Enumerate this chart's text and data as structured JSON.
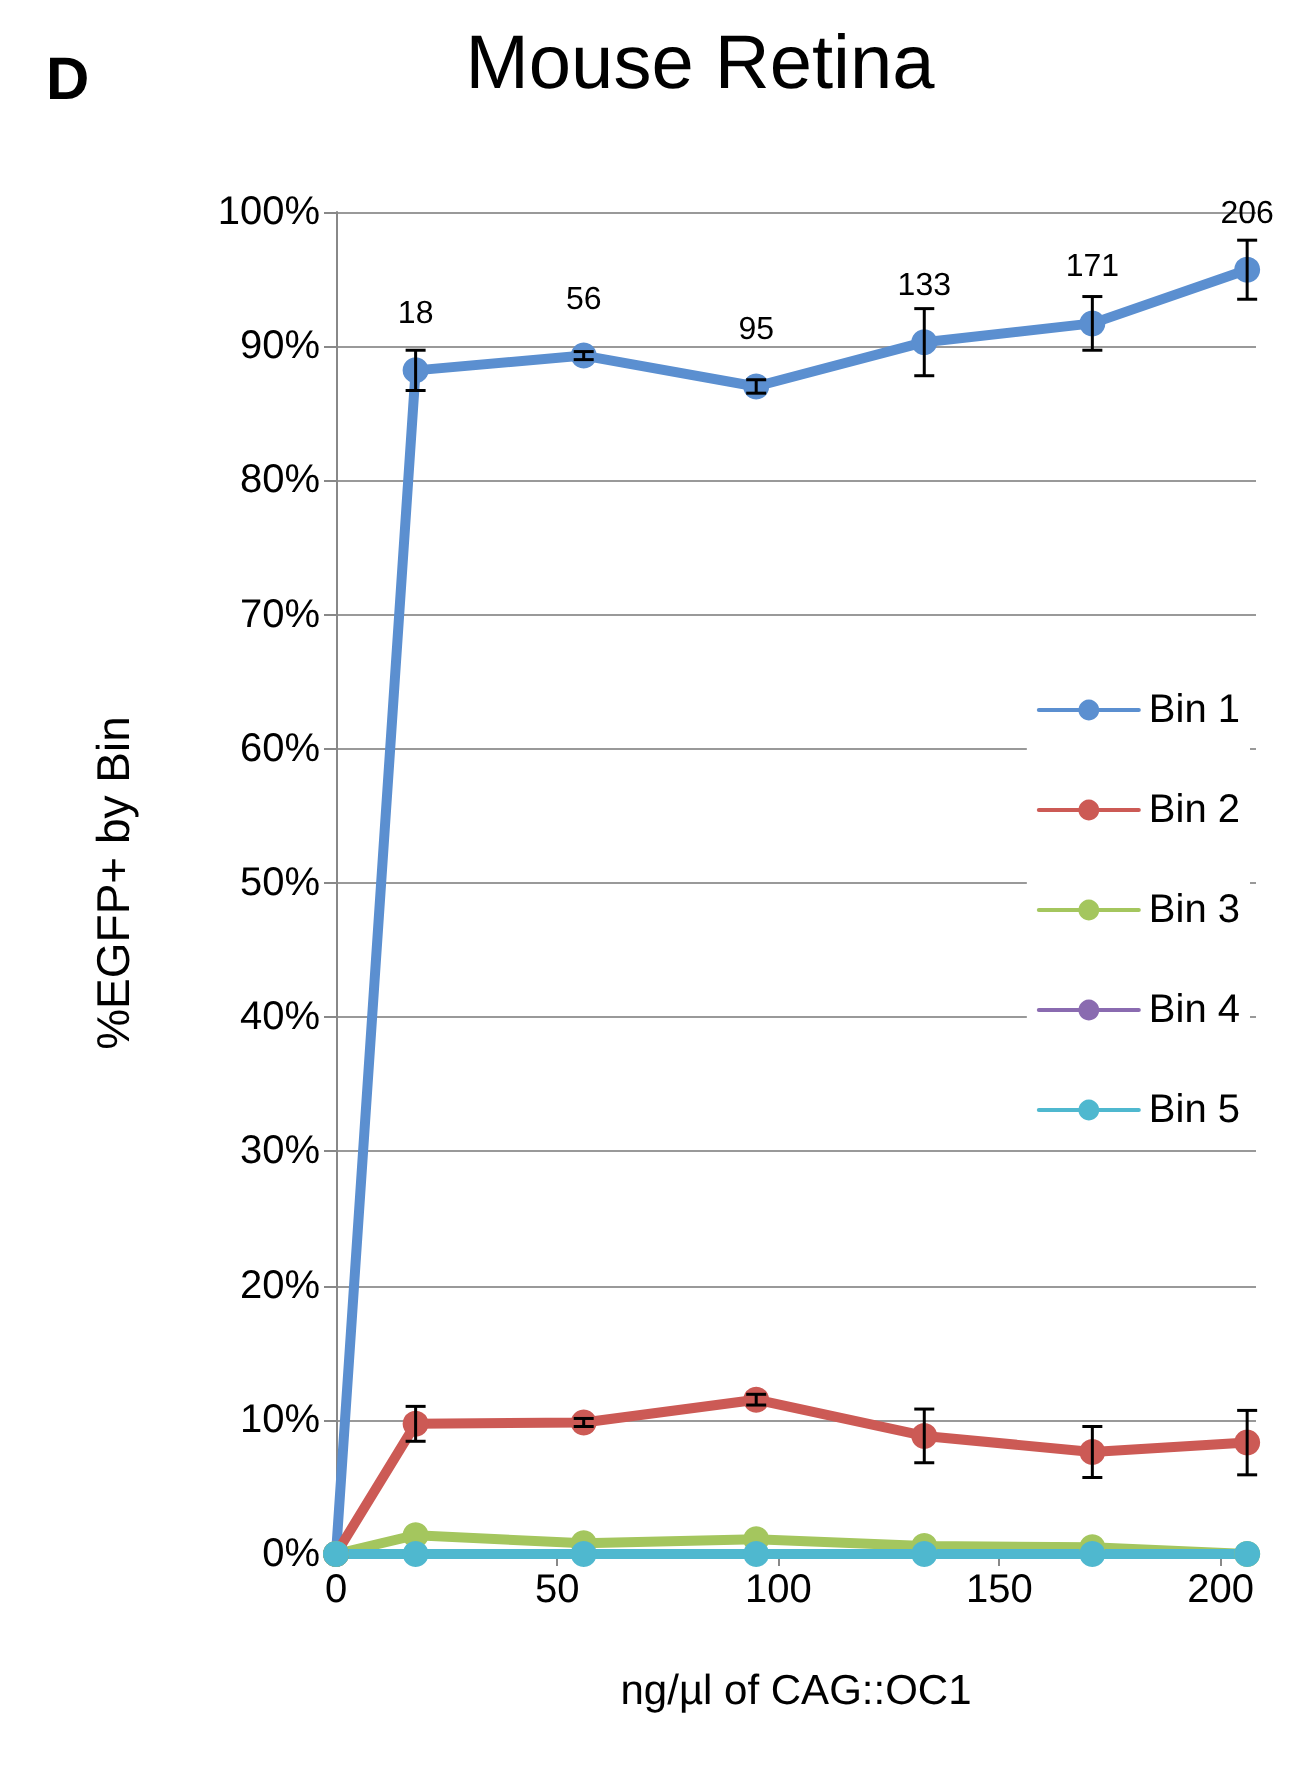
{
  "chart_data": {
    "type": "line",
    "title": "Mouse Retina",
    "xlabel": "ng/µl of CAG::OC1",
    "ylabel": "%EGFP+ by Bin",
    "x": [
      0,
      18,
      56,
      95,
      133,
      171,
      206
    ],
    "series": [
      {
        "name": "Bin 1",
        "color": "#5b8fd0",
        "values": [
          0,
          88.2,
          89.3,
          87.0,
          90.3,
          91.7,
          95.7
        ],
        "errors": [
          null,
          1.5,
          0.3,
          0.5,
          2.5,
          2,
          2.2
        ]
      },
      {
        "name": "Bin 2",
        "color": "#cc5a55",
        "values": [
          0,
          9.7,
          9.8,
          11.5,
          8.8,
          7.6,
          8.3
        ],
        "errors": [
          null,
          1.3,
          0.3,
          0.4,
          2,
          1.9,
          2.4
        ]
      },
      {
        "name": "Bin 3",
        "color": "#a4c65e",
        "values": [
          0,
          1.4,
          0.8,
          1.1,
          0.6,
          0.5,
          0
        ]
      },
      {
        "name": "Bin 4",
        "color": "#8a6bb0",
        "values": [
          null,
          null,
          null,
          null,
          null,
          null,
          null
        ]
      },
      {
        "name": "Bin 5",
        "color": "#4fb8cf",
        "values": [
          0,
          0,
          0,
          0,
          0,
          0,
          0
        ]
      }
    ],
    "xlim": [
      0,
      208
    ],
    "xticks": [
      0,
      50,
      100,
      150,
      200
    ],
    "ylim": [
      0,
      100
    ],
    "yticks": [
      {
        "value": 0,
        "label": "0%"
      },
      {
        "value": 10,
        "label": "10%"
      },
      {
        "value": 20,
        "label": "20%"
      },
      {
        "value": 30,
        "label": "30%"
      },
      {
        "value": 40,
        "label": "40%"
      },
      {
        "value": 50,
        "label": "50%"
      },
      {
        "value": 60,
        "label": "60%"
      },
      {
        "value": 70,
        "label": "70%"
      },
      {
        "value": 80,
        "label": "80%"
      },
      {
        "value": 90,
        "label": "90%"
      },
      {
        "value": 100,
        "label": "100%"
      }
    ],
    "annotations": [
      "D",
      {
        "text": "18",
        "x": 18,
        "y": 88.2
      },
      {
        "text": "56",
        "x": 56,
        "y": 89.3
      },
      {
        "text": "95",
        "x": 95,
        "y": 87.0
      },
      {
        "text": "133",
        "x": 133,
        "y": 90.3
      },
      {
        "text": "171",
        "x": 171,
        "y": 91.7
      },
      {
        "text": "206",
        "x": 206,
        "y": 95.7
      }
    ],
    "grid": "y",
    "legend": "right",
    "marker": "circle",
    "line_style": "solid"
  }
}
